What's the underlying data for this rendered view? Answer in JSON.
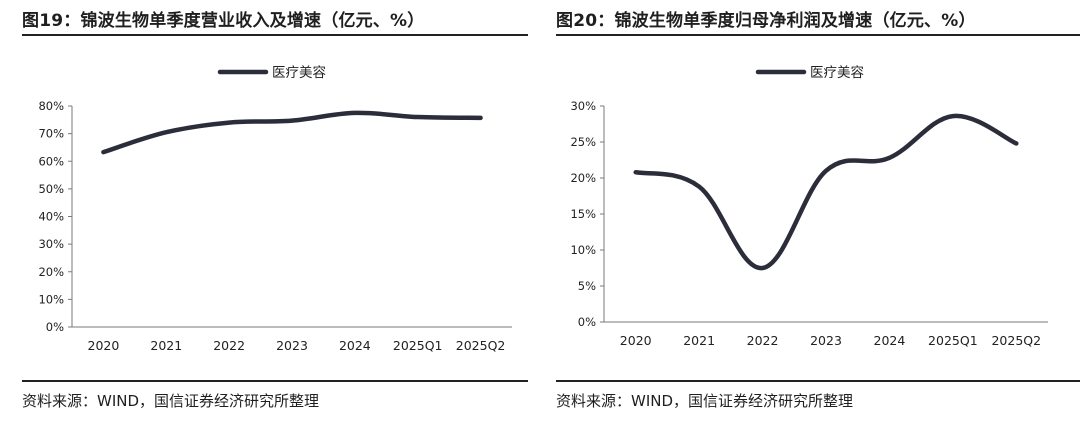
{
  "figures": [
    {
      "title": "图19：锦波生物单季度营业收入及增速（亿元、%）",
      "source": "资料来源：WIND，国信证券经济研究所整理"
    },
    {
      "title": "图20：锦波生物单季度归母净利润及增速（亿元、%）",
      "source": "资料来源：WIND，国信证券经济研究所整理"
    }
  ],
  "chart_data": [
    {
      "type": "line",
      "categories": [
        "2020",
        "2021",
        "2022",
        "2023",
        "2024",
        "2025Q1",
        "2025Q2"
      ],
      "series": [
        {
          "name": "医疗美容",
          "values": [
            63.3,
            70.5,
            74.0,
            74.7,
            77.5,
            76.0,
            75.7
          ],
          "color": "#2b2d3a"
        }
      ],
      "ylim": [
        0,
        80
      ],
      "yticks": [
        0,
        10,
        20,
        30,
        40,
        50,
        60,
        70,
        80
      ],
      "ytick_labels": [
        "0%",
        "10%",
        "20%",
        "30%",
        "40%",
        "50%",
        "60%",
        "70%",
        "80%"
      ],
      "legend_position": "top-center",
      "grid": false
    },
    {
      "type": "line",
      "categories": [
        "2020",
        "2021",
        "2022",
        "2023",
        "2024",
        "2025Q1",
        "2025Q2"
      ],
      "series": [
        {
          "name": "医疗美容",
          "values": [
            20.8,
            18.8,
            7.5,
            21.0,
            22.8,
            28.6,
            24.8
          ],
          "color": "#2b2d3a"
        }
      ],
      "ylim": [
        0,
        30
      ],
      "yticks": [
        0,
        5,
        10,
        15,
        20,
        25,
        30
      ],
      "ytick_labels": [
        "0%",
        "5%",
        "10%",
        "15%",
        "20%",
        "25%",
        "30%"
      ],
      "legend_position": "top-center",
      "grid": false
    }
  ]
}
